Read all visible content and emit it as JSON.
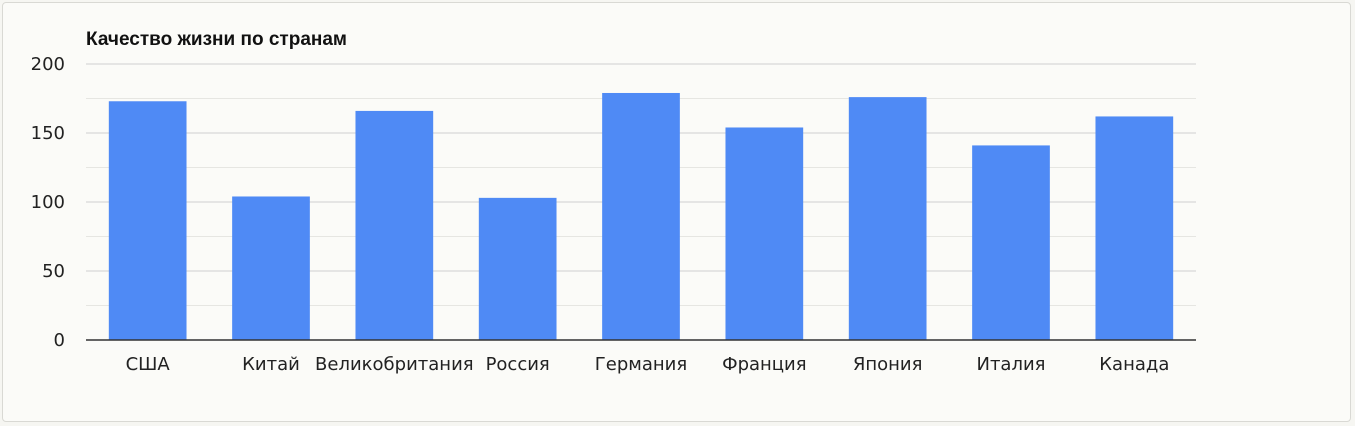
{
  "chart_data": {
    "type": "bar",
    "title": "Качество жизни по странам",
    "xlabel": "",
    "ylabel": "",
    "categories": [
      "США",
      "Китай",
      "Великобритания",
      "Россия",
      "Германия",
      "Франция",
      "Япония",
      "Италия",
      "Канада"
    ],
    "series": [
      {
        "values": [
          173,
          104,
          166,
          103,
          179,
          154,
          176,
          141,
          162
        ]
      }
    ],
    "ylim": [
      0,
      200
    ],
    "yticks": [
      "0",
      "50",
      "100",
      "150",
      "200"
    ],
    "grid": true,
    "legend": "none",
    "colors": {
      "bar": "#4f8af5",
      "gridline": "#cfcfcf",
      "minor_gridline": "#e6e6e2",
      "axis": "#333333"
    }
  }
}
